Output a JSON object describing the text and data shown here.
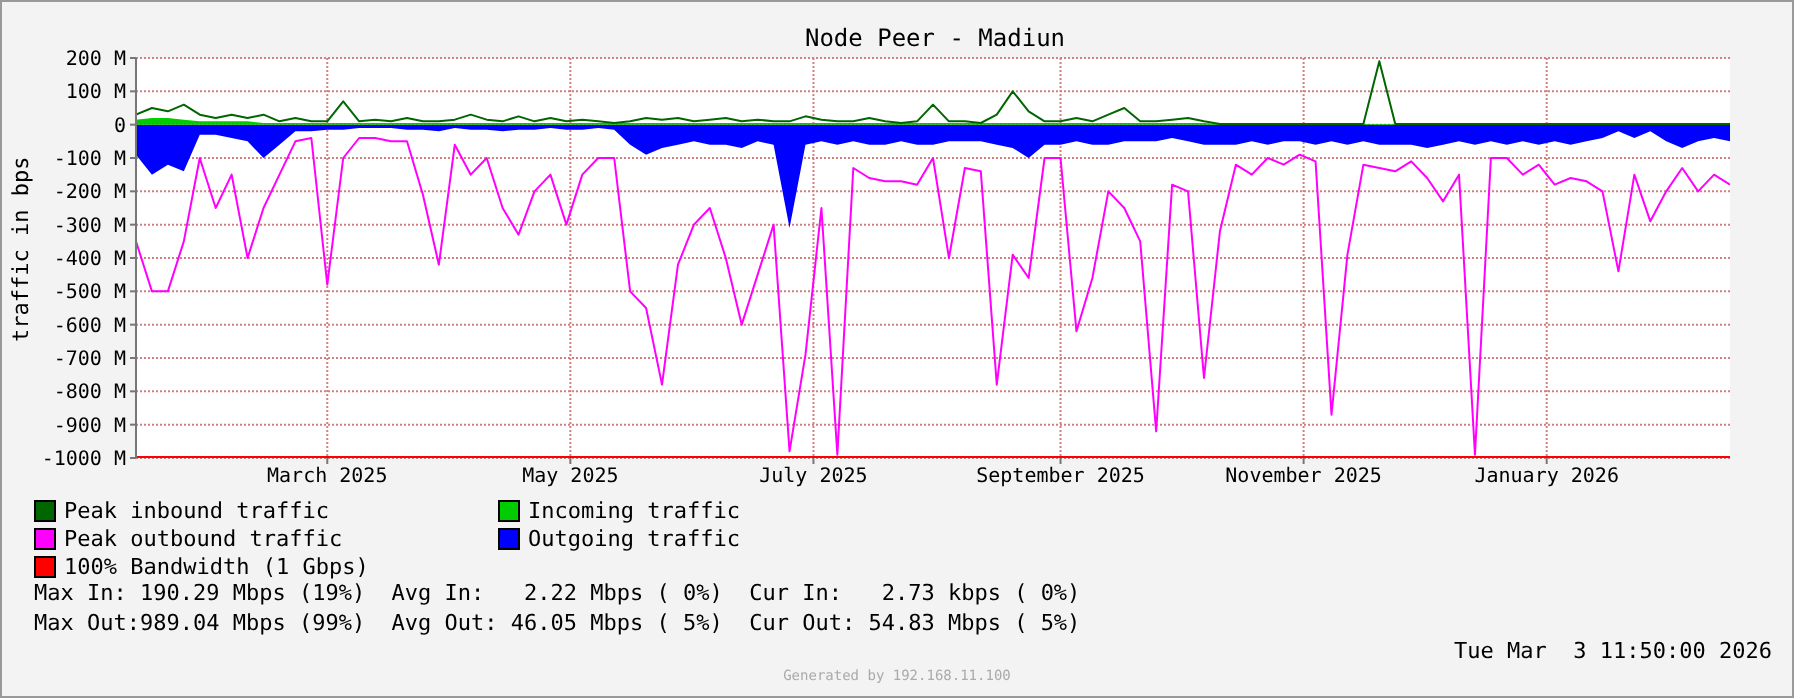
{
  "chart_data": {
    "type": "line",
    "title": "Node Peer - Madiun",
    "ylabel": "traffic in bps",
    "x": [
      "2025-01-27",
      "2025-01-31",
      "2025-02-04",
      "2025-02-08",
      "2025-02-12",
      "2025-02-16",
      "2025-02-20",
      "2025-02-24",
      "2025-02-28",
      "2025-03-04",
      "2025-03-08",
      "2025-03-12",
      "2025-03-16",
      "2025-03-20",
      "2025-03-24",
      "2025-03-28",
      "2025-04-01",
      "2025-04-05",
      "2025-04-09",
      "2025-04-13",
      "2025-04-17",
      "2025-04-21",
      "2025-04-25",
      "2025-04-29",
      "2025-05-03",
      "2025-05-07",
      "2025-05-11",
      "2025-05-15",
      "2025-05-19",
      "2025-05-23",
      "2025-05-27",
      "2025-05-31",
      "2025-06-04",
      "2025-06-08",
      "2025-06-12",
      "2025-06-16",
      "2025-06-20",
      "2025-06-24",
      "2025-06-28",
      "2025-07-02",
      "2025-07-06",
      "2025-07-10",
      "2025-07-14",
      "2025-07-18",
      "2025-07-22",
      "2025-07-26",
      "2025-07-30",
      "2025-08-03",
      "2025-08-07",
      "2025-08-11",
      "2025-08-15",
      "2025-08-19",
      "2025-08-23",
      "2025-08-27",
      "2025-08-31",
      "2025-09-04",
      "2025-09-08",
      "2025-09-12",
      "2025-09-16",
      "2025-09-20",
      "2025-09-24",
      "2025-09-28",
      "2025-10-02",
      "2025-10-06",
      "2025-10-10",
      "2025-10-14",
      "2025-10-18",
      "2025-10-22",
      "2025-10-26",
      "2025-10-30",
      "2025-11-03",
      "2025-11-07",
      "2025-11-11",
      "2025-11-15",
      "2025-11-19",
      "2025-11-23",
      "2025-11-27",
      "2025-12-01",
      "2025-12-05",
      "2025-12-09",
      "2025-12-13",
      "2025-12-17",
      "2025-12-21",
      "2025-12-25",
      "2025-12-29",
      "2026-01-02",
      "2026-01-06",
      "2026-01-10",
      "2026-01-14",
      "2026-01-18",
      "2026-01-22",
      "2026-01-26",
      "2026-01-30",
      "2026-02-03",
      "2026-02-07",
      "2026-02-11",
      "2026-02-15",
      "2026-02-19",
      "2026-02-23",
      "2026-02-27",
      "2026-03-03"
    ],
    "series": [
      {
        "name": "Outgoing traffic",
        "type": "area",
        "color": "#0000ff",
        "values": [
          -90,
          -150,
          -120,
          -140,
          -30,
          -30,
          -40,
          -50,
          -100,
          -60,
          -20,
          -20,
          -15,
          -15,
          -10,
          -10,
          -10,
          -15,
          -15,
          -20,
          -10,
          -15,
          -15,
          -20,
          -15,
          -15,
          -10,
          -15,
          -15,
          -10,
          -15,
          -60,
          -90,
          -70,
          -60,
          -50,
          -60,
          -60,
          -70,
          -50,
          -60,
          -310,
          -60,
          -50,
          -60,
          -50,
          -60,
          -60,
          -50,
          -60,
          -60,
          -50,
          -50,
          -50,
          -60,
          -70,
          -100,
          -60,
          -60,
          -50,
          -60,
          -60,
          -50,
          -50,
          -50,
          -40,
          -50,
          -60,
          -60,
          -60,
          -50,
          -60,
          -50,
          -50,
          -60,
          -50,
          -60,
          -50,
          -60,
          -60,
          -60,
          -70,
          -60,
          -50,
          -60,
          -50,
          -60,
          -50,
          -60,
          -50,
          -60,
          -50,
          -40,
          -20,
          -40,
          -20,
          -50,
          -70,
          -50,
          -40,
          -50
        ]
      },
      {
        "name": "Incoming traffic",
        "type": "area",
        "color": "#00cc00",
        "values": [
          15,
          20,
          20,
          15,
          10,
          10,
          10,
          10,
          5,
          5,
          5,
          5,
          5,
          5,
          5,
          5,
          5,
          5,
          5,
          5,
          5,
          5,
          5,
          5,
          5,
          5,
          5,
          5,
          5,
          5,
          5,
          5,
          5,
          5,
          5,
          5,
          5,
          5,
          5,
          5,
          5,
          5,
          5,
          5,
          5,
          5,
          5,
          5,
          5,
          5,
          5,
          5,
          5,
          5,
          5,
          5,
          5,
          5,
          5,
          5,
          5,
          5,
          5,
          5,
          5,
          5,
          5,
          5,
          2,
          2,
          2,
          2,
          2,
          2,
          2,
          2,
          2,
          2,
          2,
          2,
          2,
          2,
          2,
          2,
          2,
          2,
          2,
          2,
          2,
          2,
          2,
          2,
          2,
          2,
          2,
          2,
          2,
          2,
          2,
          2,
          2
        ]
      },
      {
        "name": "Peak outbound traffic",
        "color": "#ff00ff",
        "values": [
          -350,
          -500,
          -500,
          -350,
          -100,
          -250,
          -150,
          -400,
          -250,
          -150,
          -50,
          -40,
          -480,
          -100,
          -40,
          -40,
          -50,
          -50,
          -210,
          -420,
          -60,
          -150,
          -100,
          -250,
          -330,
          -200,
          -150,
          -300,
          -150,
          -100,
          -100,
          -500,
          -550,
          -780,
          -420,
          -300,
          -250,
          -400,
          -600,
          -450,
          -300,
          -980,
          -690,
          -250,
          -990,
          -130,
          -160,
          -170,
          -170,
          -180,
          -100,
          -400,
          -130,
          -140,
          -780,
          -390,
          -460,
          -100,
          -100,
          -620,
          -460,
          -200,
          -250,
          -350,
          -920,
          -180,
          -200,
          -760,
          -320,
          -120,
          -150,
          -100,
          -120,
          -90,
          -110,
          -870,
          -390,
          -120,
          -130,
          -140,
          -110,
          -160,
          -230,
          -150,
          -990,
          -100,
          -100,
          -150,
          -120,
          -180,
          -160,
          -170,
          -200,
          -440,
          -150,
          -290,
          -200,
          -130,
          -200,
          -150,
          -180
        ]
      },
      {
        "name": "Peak inbound traffic",
        "color": "#006600",
        "values": [
          30,
          50,
          40,
          60,
          30,
          20,
          30,
          20,
          30,
          10,
          20,
          10,
          10,
          70,
          10,
          15,
          10,
          20,
          10,
          10,
          15,
          30,
          15,
          10,
          25,
          10,
          20,
          10,
          15,
          10,
          5,
          10,
          20,
          15,
          20,
          10,
          15,
          20,
          10,
          15,
          10,
          10,
          25,
          15,
          10,
          10,
          20,
          10,
          5,
          10,
          60,
          10,
          10,
          5,
          30,
          100,
          40,
          10,
          10,
          20,
          10,
          30,
          50,
          10,
          10,
          15,
          20,
          10,
          2,
          2,
          2,
          2,
          2,
          2,
          2,
          2,
          2,
          2,
          190,
          2,
          2,
          2,
          2,
          2,
          2,
          2,
          2,
          2,
          2,
          2,
          2,
          2,
          2,
          2,
          2,
          2,
          2,
          2,
          2,
          2,
          2
        ]
      },
      {
        "name": "100% Bandwidth (1 Gbps)",
        "color": "#ff0000",
        "x": [
          "2025-01-27",
          "2026-03-03"
        ],
        "values": [
          -1000,
          -1000
        ]
      }
    ],
    "xlim": [
      "2025-01-27",
      "2026-03-03"
    ],
    "xticks": [
      {
        "value": "2025-03-16",
        "label": "March 2025"
      },
      {
        "value": "2025-05-16",
        "label": "May 2025"
      },
      {
        "value": "2025-07-16",
        "label": "July 2025"
      },
      {
        "value": "2025-09-16",
        "label": "September 2025"
      },
      {
        "value": "2025-11-16",
        "label": "November 2025"
      },
      {
        "value": "2026-01-16",
        "label": "January 2026"
      }
    ],
    "ylim": [
      -1000,
      200
    ],
    "yticks": [
      {
        "value": 200,
        "label": "200 M"
      },
      {
        "value": 100,
        "label": "100 M"
      },
      0,
      {
        "value": -100,
        "label": "-100 M"
      },
      {
        "value": -200,
        "label": "-200 M"
      },
      {
        "value": -300,
        "label": "-300 M"
      },
      {
        "value": -400,
        "label": "-400 M"
      },
      {
        "value": -500,
        "label": "-500 M"
      },
      {
        "value": -600,
        "label": "-600 M"
      },
      {
        "value": -700,
        "label": "-700 M"
      },
      {
        "value": -800,
        "label": "-800 M"
      },
      {
        "value": -900,
        "label": "-900 M"
      },
      {
        "value": -1000,
        "label": "-1000 M"
      }
    ],
    "grid": true,
    "legend": "bottom",
    "marker": "none",
    "annotations": [
      "Max In: 190.29 Mbps (19%)  Avg In:   2.22 Mbps ( 0%)  Cur In:   2.73 kbps ( 0%)",
      "Max Out:989.04 Mbps (99%)  Avg Out: 46.05 Mbps ( 5%)  Cur Out: 54.83 Mbps ( 5%)",
      "Tue Mar  3 11:50:00 2026",
      "Generated by 192.168.11.100"
    ]
  }
}
